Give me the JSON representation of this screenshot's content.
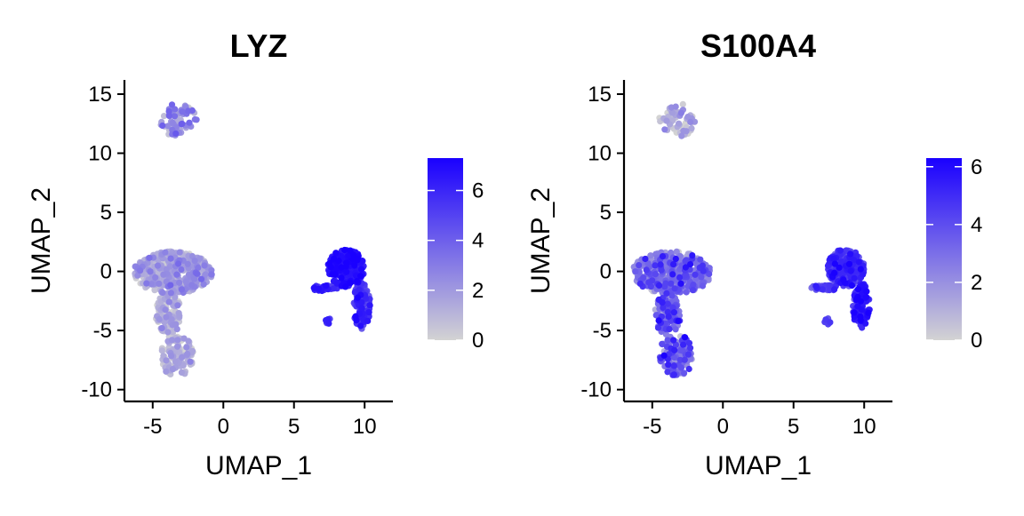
{
  "chart_data": [
    {
      "type": "scatter",
      "title": "LYZ",
      "xlabel": "UMAP_1",
      "ylabel": "UMAP_2",
      "xlim": [
        -7,
        12
      ],
      "ylim": [
        -11,
        16.2
      ],
      "xticks": [
        -5,
        0,
        5,
        10
      ],
      "yticks": [
        -10,
        -5,
        0,
        5,
        10,
        15
      ],
      "colorbar": {
        "min": 0,
        "max": 7.3,
        "ticks": [
          0,
          2,
          4,
          6
        ],
        "low_color": "#d3d3d3",
        "high_color": "#1a00ff"
      },
      "clusters": [
        {
          "cx": -3.2,
          "cy": 12.8,
          "rx": 1.3,
          "ry": 1.4,
          "n": 70,
          "mean": 2.2,
          "sd": 1.2
        },
        {
          "cx": -3.6,
          "cy": -0.1,
          "rx": 2.8,
          "ry": 1.8,
          "n": 420,
          "mean": 1.3,
          "sd": 1.0
        },
        {
          "cx": -3.9,
          "cy": -3.6,
          "rx": 0.9,
          "ry": 1.8,
          "n": 120,
          "mean": 0.9,
          "sd": 0.9
        },
        {
          "cx": -3.3,
          "cy": -7.1,
          "rx": 1.2,
          "ry": 1.8,
          "n": 120,
          "mean": 0.8,
          "sd": 0.9
        },
        {
          "cx": 8.7,
          "cy": 0.3,
          "rx": 1.3,
          "ry": 1.6,
          "n": 230,
          "mean": 6.5,
          "sd": 0.6
        },
        {
          "cx": 9.8,
          "cy": -2.9,
          "rx": 0.6,
          "ry": 2.0,
          "n": 110,
          "mean": 5.3,
          "sd": 0.9
        },
        {
          "cx": 7.2,
          "cy": -1.4,
          "rx": 1.0,
          "ry": 0.25,
          "n": 30,
          "mean": 5.6,
          "sd": 0.8
        },
        {
          "cx": 7.4,
          "cy": -4.2,
          "rx": 0.22,
          "ry": 0.28,
          "n": 8,
          "mean": 5.5,
          "sd": 0.5
        }
      ]
    },
    {
      "type": "scatter",
      "title": "S100A4",
      "xlabel": "UMAP_1",
      "ylabel": "UMAP_2",
      "xlim": [
        -7,
        12
      ],
      "ylim": [
        -11,
        16.2
      ],
      "xticks": [
        -5,
        0,
        5,
        10
      ],
      "yticks": [
        -10,
        -5,
        0,
        5,
        10,
        15
      ],
      "colorbar": {
        "min": 0,
        "max": 6.3,
        "ticks": [
          0,
          2,
          4,
          6
        ],
        "low_color": "#d3d3d3",
        "high_color": "#1a00ff"
      },
      "clusters": [
        {
          "cx": -3.2,
          "cy": 12.8,
          "rx": 1.3,
          "ry": 1.4,
          "n": 70,
          "mean": 1.0,
          "sd": 0.9
        },
        {
          "cx": -3.6,
          "cy": -0.1,
          "rx": 2.8,
          "ry": 1.8,
          "n": 420,
          "mean": 2.5,
          "sd": 1.3
        },
        {
          "cx": -3.9,
          "cy": -3.6,
          "rx": 0.9,
          "ry": 1.8,
          "n": 120,
          "mean": 3.2,
          "sd": 1.2
        },
        {
          "cx": -3.3,
          "cy": -7.1,
          "rx": 1.2,
          "ry": 1.8,
          "n": 120,
          "mean": 3.3,
          "sd": 1.2
        },
        {
          "cx": 8.7,
          "cy": 0.3,
          "rx": 1.3,
          "ry": 1.6,
          "n": 230,
          "mean": 4.6,
          "sd": 0.9
        },
        {
          "cx": 9.8,
          "cy": -2.9,
          "rx": 0.6,
          "ry": 2.0,
          "n": 110,
          "mean": 5.1,
          "sd": 0.8
        },
        {
          "cx": 7.2,
          "cy": -1.4,
          "rx": 1.0,
          "ry": 0.25,
          "n": 30,
          "mean": 4.2,
          "sd": 0.8
        },
        {
          "cx": 7.4,
          "cy": -4.2,
          "rx": 0.22,
          "ry": 0.28,
          "n": 8,
          "mean": 4.5,
          "sd": 0.6
        }
      ]
    }
  ]
}
